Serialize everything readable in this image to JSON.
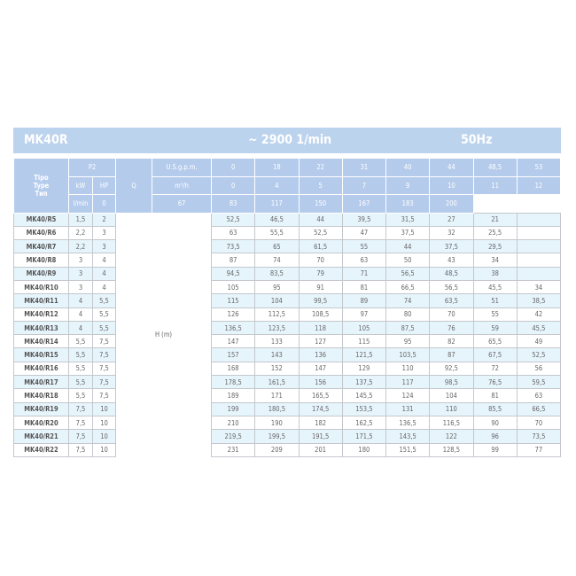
{
  "title": {
    "model": "MK40R",
    "speed": "~ 2900 1/min",
    "frequency": "50Hz"
  },
  "header": {
    "type_label": [
      "Tipo",
      "Type",
      "Тип"
    ],
    "p2": "P2",
    "kw": "kW",
    "hp": "HP",
    "q": "Q",
    "units": [
      {
        "label": "U.S.g.p.m.",
        "values": [
          "0",
          "18",
          "22",
          "31",
          "40",
          "44",
          "48,5",
          "53"
        ]
      },
      {
        "label": "m³/h",
        "values": [
          "0",
          "4",
          "5",
          "7",
          "9",
          "10",
          "11",
          "12"
        ]
      },
      {
        "label": "l/min",
        "values": [
          "0",
          "67",
          "83",
          "117",
          "150",
          "167",
          "183",
          "200"
        ]
      }
    ]
  },
  "h_label": "H (m)",
  "rows": [
    {
      "type": "MK40/R5",
      "kw": "1,5",
      "hp": "2",
      "h": [
        "52,5",
        "46,5",
        "44",
        "39,5",
        "31,5",
        "27",
        "21",
        ""
      ]
    },
    {
      "type": "MK40/R6",
      "kw": "2,2",
      "hp": "3",
      "h": [
        "63",
        "55,5",
        "52,5",
        "47",
        "37,5",
        "32",
        "25,5",
        ""
      ]
    },
    {
      "type": "MK40/R7",
      "kw": "2,2",
      "hp": "3",
      "h": [
        "73,5",
        "65",
        "61,5",
        "55",
        "44",
        "37,5",
        "29,5",
        ""
      ]
    },
    {
      "type": "MK40/R8",
      "kw": "3",
      "hp": "4",
      "h": [
        "87",
        "74",
        "70",
        "63",
        "50",
        "43",
        "34",
        ""
      ]
    },
    {
      "type": "MK40/R9",
      "kw": "3",
      "hp": "4",
      "h": [
        "94,5",
        "83,5",
        "79",
        "71",
        "56,5",
        "48,5",
        "38",
        ""
      ]
    },
    {
      "type": "MK40/R10",
      "kw": "3",
      "hp": "4",
      "h": [
        "105",
        "95",
        "91",
        "81",
        "66,5",
        "56,5",
        "45,5",
        "34"
      ]
    },
    {
      "type": "MK40/R11",
      "kw": "4",
      "hp": "5,5",
      "h": [
        "115",
        "104",
        "99,5",
        "89",
        "74",
        "63,5",
        "51",
        "38,5"
      ]
    },
    {
      "type": "MK40/R12",
      "kw": "4",
      "hp": "5,5",
      "h": [
        "126",
        "112,5",
        "108,5",
        "97",
        "80",
        "70",
        "55",
        "42"
      ]
    },
    {
      "type": "MK40/R13",
      "kw": "4",
      "hp": "5,5",
      "h": [
        "136,5",
        "123,5",
        "118",
        "105",
        "87,5",
        "76",
        "59",
        "45,5"
      ]
    },
    {
      "type": "MK40/R14",
      "kw": "5,5",
      "hp": "7,5",
      "h": [
        "147",
        "133",
        "127",
        "115",
        "95",
        "82",
        "65,5",
        "49"
      ]
    },
    {
      "type": "MK40/R15",
      "kw": "5,5",
      "hp": "7,5",
      "h": [
        "157",
        "143",
        "136",
        "121,5",
        "103,5",
        "87",
        "67,5",
        "52,5"
      ]
    },
    {
      "type": "MK40/R16",
      "kw": "5,5",
      "hp": "7,5",
      "h": [
        "168",
        "152",
        "147",
        "129",
        "110",
        "92,5",
        "72",
        "56"
      ]
    },
    {
      "type": "MK40/R17",
      "kw": "5,5",
      "hp": "7,5",
      "h": [
        "178,5",
        "161,5",
        "156",
        "137,5",
        "117",
        "98,5",
        "76,5",
        "59,5"
      ]
    },
    {
      "type": "MK40/R18",
      "kw": "5,5",
      "hp": "7,5",
      "h": [
        "189",
        "171",
        "165,5",
        "145,5",
        "124",
        "104",
        "81",
        "63"
      ]
    },
    {
      "type": "MK40/R19",
      "kw": "7,5",
      "hp": "10",
      "h": [
        "199",
        "180,5",
        "174,5",
        "153,5",
        "131",
        "110",
        "85,5",
        "66,5"
      ]
    },
    {
      "type": "MK40/R20",
      "kw": "7,5",
      "hp": "10",
      "h": [
        "210",
        "190",
        "182",
        "162,5",
        "136,5",
        "116,5",
        "90",
        "70"
      ]
    },
    {
      "type": "MK40/R21",
      "kw": "7,5",
      "hp": "10",
      "h": [
        "219,5",
        "199,5",
        "191,5",
        "171,5",
        "143,5",
        "122",
        "96",
        "73,5"
      ]
    },
    {
      "type": "MK40/R22",
      "kw": "7,5",
      "hp": "10",
      "h": [
        "231",
        "209",
        "201",
        "180",
        "151,5",
        "128,5",
        "99",
        "77"
      ]
    }
  ]
}
